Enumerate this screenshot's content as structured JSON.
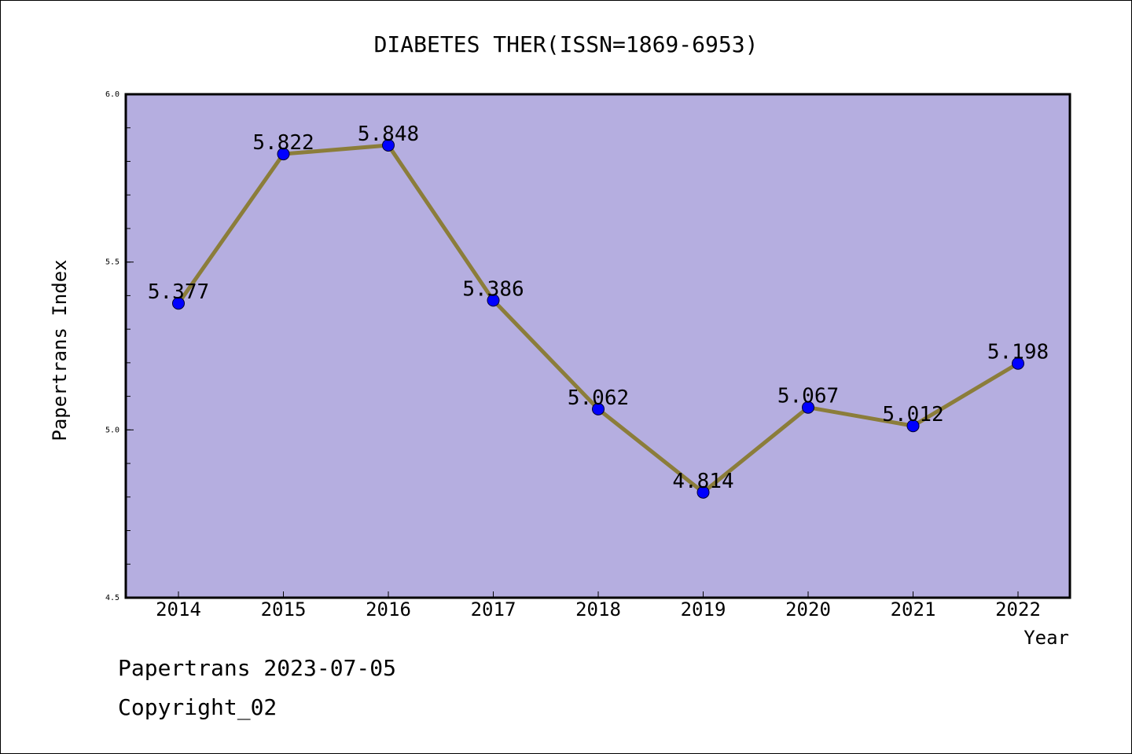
{
  "chart_data": {
    "type": "line",
    "title": "DIABETES THER(ISSN=1869-6953)",
    "xlabel": "Year",
    "ylabel": "Papertrans Index",
    "categories": [
      "2014",
      "2015",
      "2016",
      "2017",
      "2018",
      "2019",
      "2020",
      "2021",
      "2022"
    ],
    "values": [
      5.377,
      5.822,
      5.848,
      5.386,
      5.062,
      4.814,
      5.067,
      5.012,
      5.198
    ],
    "data_labels": [
      "5.377",
      "5.822",
      "5.848",
      "5.386",
      "5.062",
      "4.814",
      "5.067",
      "5.012",
      "5.198"
    ],
    "ylim": [
      4.5,
      6.0
    ],
    "yticks": [
      "4.5",
      "5.0",
      "5.5",
      "6.0"
    ],
    "y_minor_step": 0.1,
    "grid": false,
    "colors": {
      "plot_background": "#b5aee0",
      "line": "#8b7d3a",
      "marker": "#0000ff"
    }
  },
  "footer": {
    "date_line": "Papertrans 2023-07-05",
    "copyright": "Copyright_02"
  }
}
